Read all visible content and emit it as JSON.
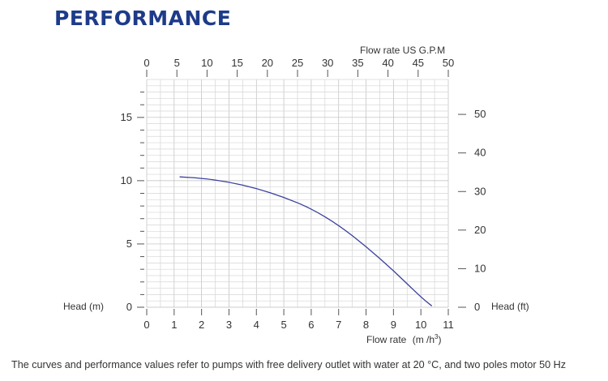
{
  "page": {
    "title": "PERFORMANCE",
    "footnote": "The curves and performance values refer to pumps with free delivery outlet with water at 20 °C, and two poles motor 50 Hz"
  },
  "chart_data": {
    "type": "line",
    "title": "",
    "xlabel": "Flow rate",
    "xlabel_unit": "(m /h",
    "xlabel_unit_sup": "3",
    "xlabel_unit_close": ")",
    "ylabel": "Head (m)",
    "x2label": "Flow rate US  G.P.M",
    "y2label": "Head (ft)",
    "xlim": [
      0,
      11
    ],
    "ylim": [
      0,
      18
    ],
    "x_ticks": [
      0,
      1,
      2,
      3,
      4,
      5,
      6,
      7,
      8,
      9,
      10,
      11
    ],
    "y_ticks": [
      0,
      5,
      10,
      15
    ],
    "x2_ticks": [
      0,
      5,
      10,
      15,
      20,
      25,
      30,
      35,
      40,
      45,
      50
    ],
    "y2_ticks": [
      0,
      10,
      20,
      30,
      40,
      50
    ],
    "grid": true,
    "series": [
      {
        "name": "",
        "color": "#3a3f9e",
        "x": [
          1.2,
          2.0,
          3.0,
          4.0,
          5.0,
          6.0,
          7.0,
          8.0,
          9.0,
          10.0,
          10.4
        ],
        "y": [
          10.3,
          10.2,
          9.9,
          9.4,
          8.7,
          7.8,
          6.5,
          4.8,
          2.9,
          0.8,
          0.1
        ]
      }
    ]
  }
}
